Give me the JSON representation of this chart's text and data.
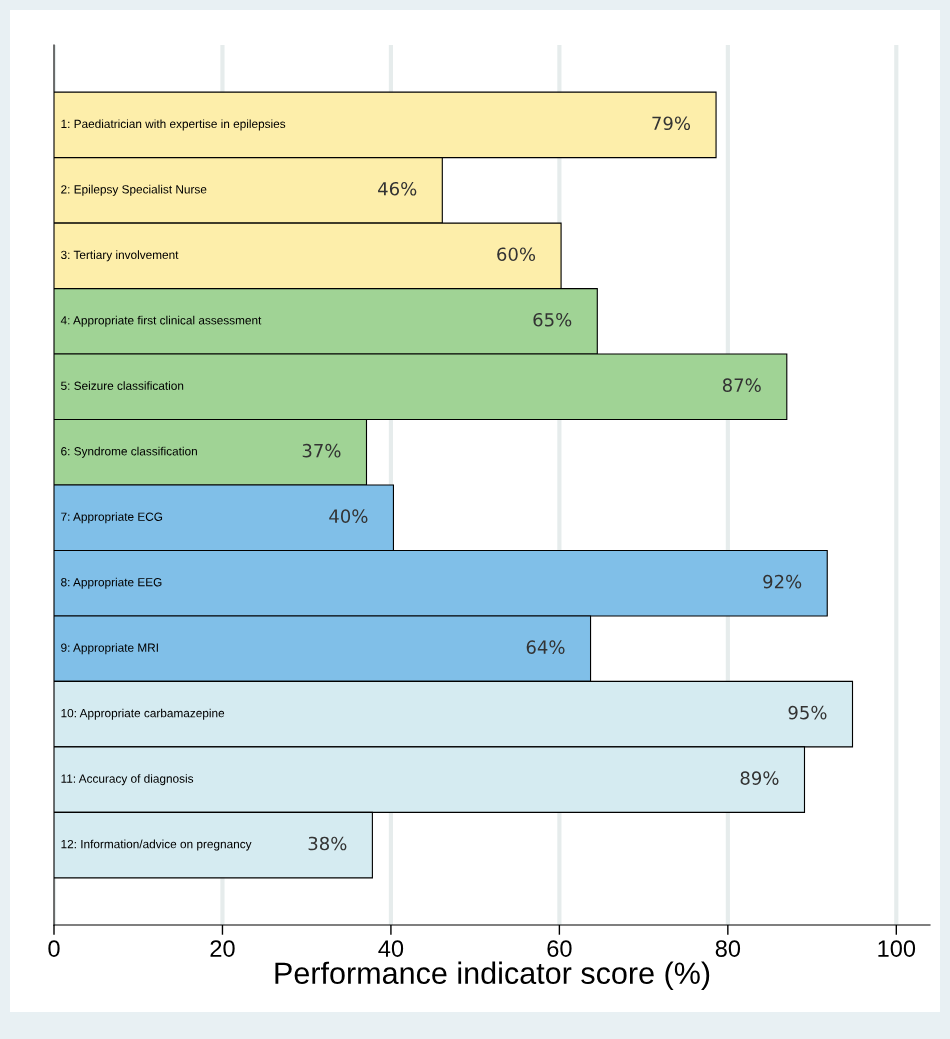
{
  "chart_data": {
    "type": "bar",
    "orientation": "horizontal",
    "xlabel": "Performance indicator score (%)",
    "categories": [
      "1: Paediatrician with expertise in epilepsies",
      "2: Epilepsy Specialist Nurse",
      "3: Tertiary involvement",
      "4: Appropriate first clinical assessment",
      "5: Seizure classification",
      "6: Syndrome classification",
      "7: Appropriate ECG",
      "8: Appropriate EEG",
      "9: Appropriate MRI",
      "10: Appropriate carbamazepine",
      "11: Accuracy of diagnosis",
      "12: Information/advice on pregnancy"
    ],
    "values": [
      78.6,
      46.1,
      60.2,
      64.5,
      87.0,
      37.1,
      40.3,
      91.8,
      63.7,
      94.8,
      89.1,
      37.8
    ],
    "value_labels": [
      "79%",
      "46%",
      "60%",
      "65%",
      "87%",
      "37%",
      "40%",
      "92%",
      "64%",
      "95%",
      "89%",
      "38%"
    ],
    "colors": [
      "#fdeeaa",
      "#fdeeaa",
      "#fdeeaa",
      "#a0d395",
      "#a0d395",
      "#a0d395",
      "#80bfe8",
      "#80bfe8",
      "#80bfe8",
      "#d5ebf1",
      "#d5ebf1",
      "#d5ebf1"
    ],
    "xlim": [
      0,
      104
    ],
    "xticks": [
      0,
      20,
      40,
      60,
      80,
      100
    ],
    "grid": "x",
    "tick_labels": "x"
  }
}
